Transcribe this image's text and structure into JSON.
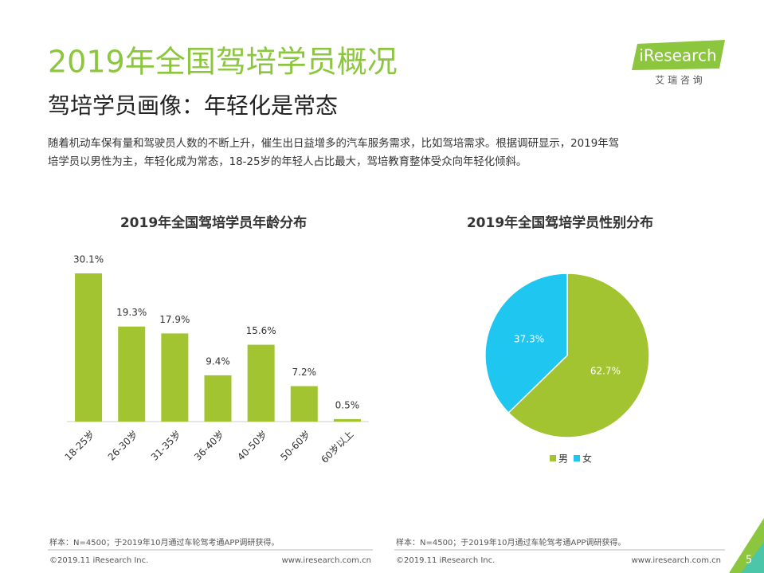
{
  "header": {
    "title": "2019年全国驾培学员概况",
    "subtitle": "驾培学员画像：年轻化是常态",
    "text": [
      "随着机动车保有量和驾驶员人数的不断上升，催生出日益增多的汽车服务需求，比如驾培需求。根据调研显示，2019年驾",
      "培学员以男性为主，年轻化成为常态，18-25岁的年轻人占比最大，驾培教育整体受众向年轻化倾斜。"
    ]
  },
  "logo": {
    "name": "iResearch",
    "chinese": "艾 瑞 咨 询"
  },
  "chart_data": [
    {
      "type": "bar",
      "title": "2019年全国驾培学员年龄分布",
      "categories": [
        "18-25岁",
        "26-30岁",
        "31-35岁",
        "36-40岁",
        "40-50岁",
        "50-60岁",
        "60岁以上"
      ],
      "values": [
        30.1,
        19.3,
        17.9,
        9.4,
        15.6,
        7.2,
        0.5
      ],
      "value_labels": [
        "30.1%",
        "19.3%",
        "17.9%",
        "9.4%",
        "15.6%",
        "7.2%",
        "0.5%"
      ],
      "color": "#a3c431"
    },
    {
      "type": "pie",
      "title": "2019年全国驾培学员性别分布",
      "categories": [
        "男",
        "女"
      ],
      "values": [
        62.7,
        37.3
      ],
      "value_labels": [
        "62.7%",
        "37.3%"
      ],
      "colors": [
        "#a3c431",
        "#1fc6f0"
      ],
      "legend": "bottom"
    }
  ],
  "footer": {
    "note": "样本：N=4500；于2019年10月通过车轮驾考通APP调研获得。",
    "copyright": "©2019.11 iResearch Inc.",
    "url": "www.iresearch.com.cn",
    "page": "5"
  }
}
